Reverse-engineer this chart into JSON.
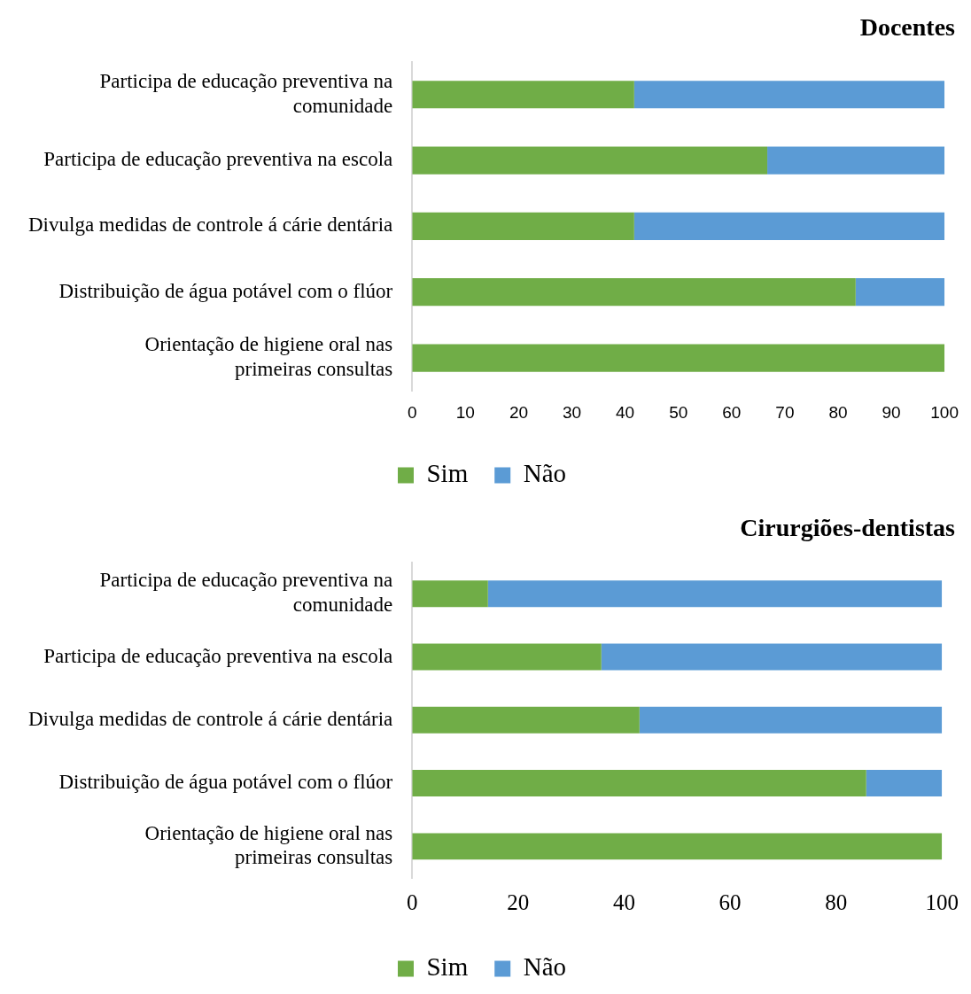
{
  "chart_data": [
    {
      "type": "bar",
      "title": "Docentes",
      "orientation": "horizontal",
      "stacked": true,
      "legend": "bottom",
      "xlim": [
        0,
        100
      ],
      "xticks": [
        0,
        10,
        20,
        30,
        40,
        50,
        60,
        70,
        80,
        90,
        100
      ],
      "categories": [
        "Participa de educação preventiva na comunidade",
        "Participa de educação preventiva na escola",
        "Divulga medidas de controle á cárie dentária",
        "Distribuição de água potável com o flúor",
        "Orientação de higiene oral nas primeiras consultas"
      ],
      "series": [
        {
          "name": "Sim",
          "color": "#70ad47",
          "values": [
            41.7,
            66.7,
            41.7,
            83.3,
            100
          ]
        },
        {
          "name": "Não",
          "color": "#5b9bd5",
          "values": [
            58.3,
            33.3,
            58.3,
            16.7,
            0
          ]
        }
      ]
    },
    {
      "type": "bar",
      "title": "Cirurgiões-dentistas",
      "orientation": "horizontal",
      "stacked": true,
      "legend": "bottom",
      "xlim": [
        0,
        100
      ],
      "xticks": [
        0,
        20,
        40,
        60,
        80,
        100
      ],
      "categories": [
        "Participa de educação preventiva na comunidade",
        "Participa de educação preventiva na escola",
        "Divulga medidas de controle á cárie dentária",
        "Distribuição de água potável com o flúor",
        "Orientação de higiene oral nas primeiras consultas"
      ],
      "series": [
        {
          "name": "Sim",
          "color": "#70ad47",
          "values": [
            14.3,
            35.7,
            42.9,
            85.7,
            100
          ]
        },
        {
          "name": "Não",
          "color": "#5b9bd5",
          "values": [
            85.7,
            64.3,
            57.1,
            14.3,
            0
          ]
        }
      ]
    }
  ]
}
